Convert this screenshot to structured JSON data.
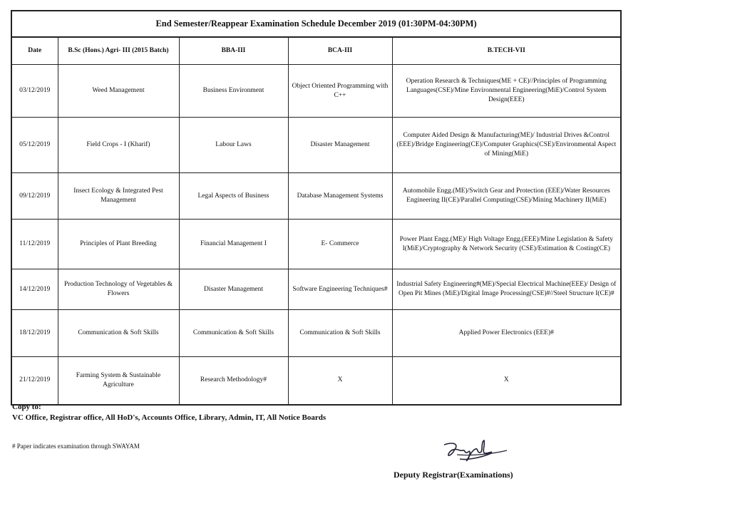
{
  "title": "End Semester/Reappear Examination Schedule  December 2019 (01:30PM-04:30PM)",
  "headers": [
    "Date",
    "B.Sc (Hons.) Agri- III (2015 Batch)",
    "BBA-III",
    "BCA-III",
    "B.TECH-VII"
  ],
  "rows": [
    {
      "date": "03/12/2019",
      "agri": "Weed Management",
      "bba": "Business Environment",
      "bca": "Object Oriented Programming with C++",
      "btech": "Operation Research & Techniques(ME + CE)//Principles of Programming Languages(CSE)/Mine Environmental Engineering(MiE)/Control System Design(EEE)"
    },
    {
      "date": "05/12/2019",
      "agri": "Field Crops - I (Kharif)",
      "bba": "Labour Laws",
      "bca": "Disaster Management",
      "btech": "Computer Aided Design & Manufacturing(ME)/ Industrial Drives &Control (EEE)/Bridge Engineering(CE)/Computer Graphics(CSE)/Environmental Aspect of Mining(MiE)"
    },
    {
      "date": "09/12/2019",
      "agri": "Insect Ecology & Integrated Pest Management",
      "bba": "Legal Aspects of Business",
      "bca": "Database Management Systems",
      "btech": "Automobile Engg.(ME)/Switch Gear and Protection (EEE)/Water Resources Engineering II(CE)/Parallel Computing(CSE)/Mining Machinery II(MiE)"
    },
    {
      "date": "11/12/2019",
      "agri": "Principles of Plant Breeding",
      "bba": "Financial Management I",
      "bca": "E- Commerce",
      "btech": "Power Plant Engg.(ME)/ High Voltage Engg.(EEE)/Mine Legislation & Safety I(MiE)/Cryptography & Network Security (CSE)/Estimation & Costing(CE)"
    },
    {
      "date": "14/12/2019",
      "agri": "Production Technology of Vegetables & Flowers",
      "bba": "Disaster Management",
      "bca": "Software Engineering Techniques#",
      "btech": "Industrial Safety Engineering#(ME)/Special Electrical Machine(EEE)/ Design of Open Pit Mines (MiE)/Digital Image Processing(CSE)#//Steel Structure I(CE)#"
    },
    {
      "date": "18/12/2019",
      "agri": "Communication & Soft Skills",
      "bba": "Communication & Soft Skills",
      "bca": "Communication & Soft Skills",
      "btech": "Applied Power Electronics (EEE)#"
    },
    {
      "date": "21/12/2019",
      "agri": "Farming System & Sustainable Agriculture",
      "bba": "Research Methodology#",
      "bca": "X",
      "btech": "X"
    }
  ],
  "copy_to_label": "Copy to:",
  "copy_to": "VC Office, Registrar office, All HoD's, Accounts Office, Library, Admin, IT, All Notice Boards",
  "note": "# Paper indicates examination through SWAYAM",
  "signatory": "Deputy Registrar(Examinations)"
}
